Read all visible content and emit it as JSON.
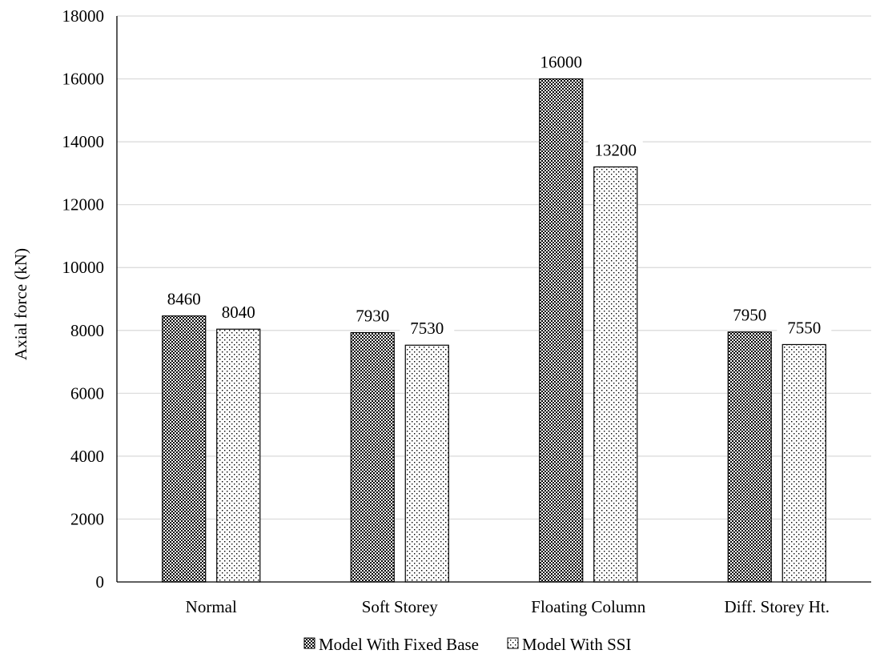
{
  "chart_data": {
    "type": "bar",
    "categories": [
      "Normal",
      "Soft Storey",
      "Floating Column",
      "Diff. Storey Ht."
    ],
    "series": [
      {
        "name": "Model With Fixed Base",
        "values": [
          8460,
          7930,
          16000,
          7950
        ],
        "pattern": "dense-checker"
      },
      {
        "name": "Model With SSI",
        "values": [
          8040,
          7530,
          13200,
          7550
        ],
        "pattern": "sparse-dots"
      }
    ],
    "title": "",
    "xlabel": "",
    "ylabel": "Axial force (kN)",
    "ylim": [
      0,
      18000
    ],
    "yticks": [
      0,
      2000,
      4000,
      6000,
      8000,
      10000,
      12000,
      14000,
      16000,
      18000
    ],
    "grid": true,
    "legend_position": "bottom-center",
    "colors": {
      "bar_stroke": "#000000",
      "gridline": "#d9d9d9",
      "axis": "#000000"
    }
  }
}
